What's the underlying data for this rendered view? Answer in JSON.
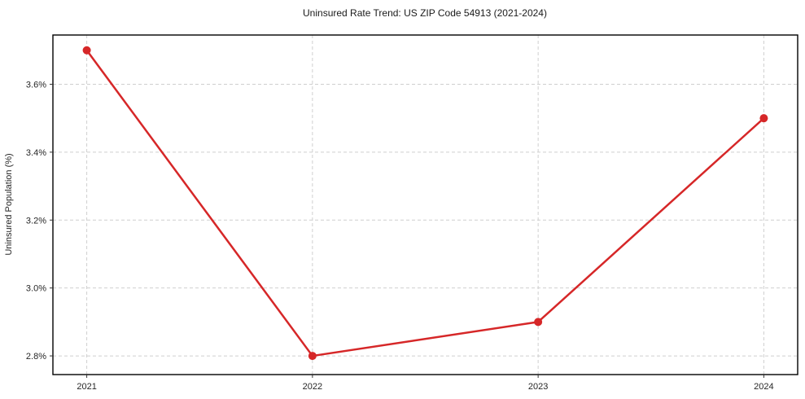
{
  "chart_data": {
    "type": "line",
    "title": "Uninsured Rate Trend: US ZIP Code 54913 (2021-2024)",
    "xlabel": "",
    "ylabel": "Uninsured Population (%)",
    "x": [
      2021,
      2022,
      2023,
      2024
    ],
    "x_tick_labels": [
      "2021",
      "2022",
      "2023",
      "2024"
    ],
    "series": [
      {
        "name": "Uninsured Rate",
        "values": [
          3.7,
          2.8,
          2.9,
          3.5
        ]
      }
    ],
    "y_ticks": [
      2.8,
      3.0,
      3.2,
      3.4,
      3.6
    ],
    "y_tick_labels": [
      "2.8%",
      "3.0%",
      "3.2%",
      "3.4%",
      "3.6%"
    ],
    "xlim": [
      2020.85,
      2024.15
    ],
    "ylim": [
      2.745,
      3.745
    ],
    "grid": true,
    "grid_style": "dashed",
    "legend_position": "none",
    "line_color": "#d62728",
    "marker": "circle",
    "marker_radius": 5,
    "grid_color": "#cfcfcf",
    "border_color": "#000000",
    "background_color": "#ffffff"
  }
}
